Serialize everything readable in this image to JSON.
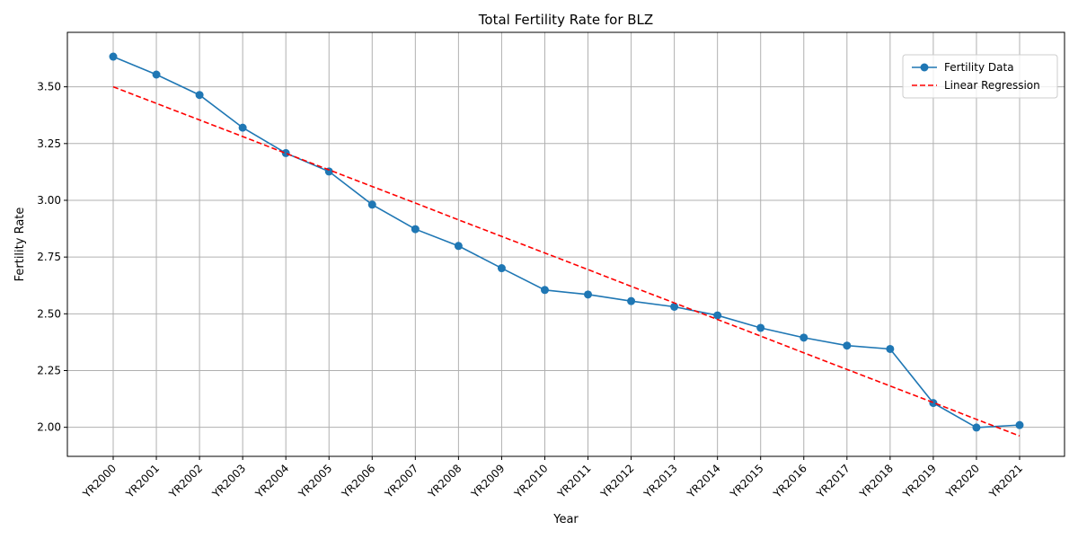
{
  "chart_data": {
    "type": "line",
    "title": "Total Fertility Rate for BLZ",
    "xlabel": "Year",
    "ylabel": "Fertility Rate",
    "categories": [
      "YR2000",
      "YR2001",
      "YR2002",
      "YR2003",
      "YR2004",
      "YR2005",
      "YR2006",
      "YR2007",
      "YR2008",
      "YR2009",
      "YR2010",
      "YR2011",
      "YR2012",
      "YR2013",
      "YR2014",
      "YR2015",
      "YR2016",
      "YR2017",
      "YR2018",
      "YR2019",
      "YR2020",
      "YR2021"
    ],
    "series": [
      {
        "name": "Fertility Data",
        "color": "#1f77b4",
        "style": "solid-with-markers",
        "values": [
          3.633,
          3.554,
          3.464,
          3.32,
          3.208,
          3.127,
          2.981,
          2.873,
          2.799,
          2.701,
          2.605,
          2.585,
          2.556,
          2.531,
          2.493,
          2.438,
          2.395,
          2.36,
          2.345,
          2.107,
          1.999,
          2.01
        ]
      },
      {
        "name": "Linear Regression",
        "color": "#ff0000",
        "style": "dashed",
        "values": [
          3.5,
          3.427,
          3.354,
          3.281,
          3.207,
          3.134,
          3.061,
          2.988,
          2.914,
          2.841,
          2.768,
          2.695,
          2.621,
          2.548,
          2.475,
          2.402,
          2.328,
          2.255,
          2.182,
          2.109,
          2.035,
          1.962
        ]
      }
    ],
    "yticks": [
      "2.00",
      "2.25",
      "2.50",
      "2.75",
      "3.00",
      "3.25",
      "3.50"
    ],
    "ylim": [
      1.872,
      3.74
    ],
    "grid": true,
    "legend_position": "top-right"
  }
}
